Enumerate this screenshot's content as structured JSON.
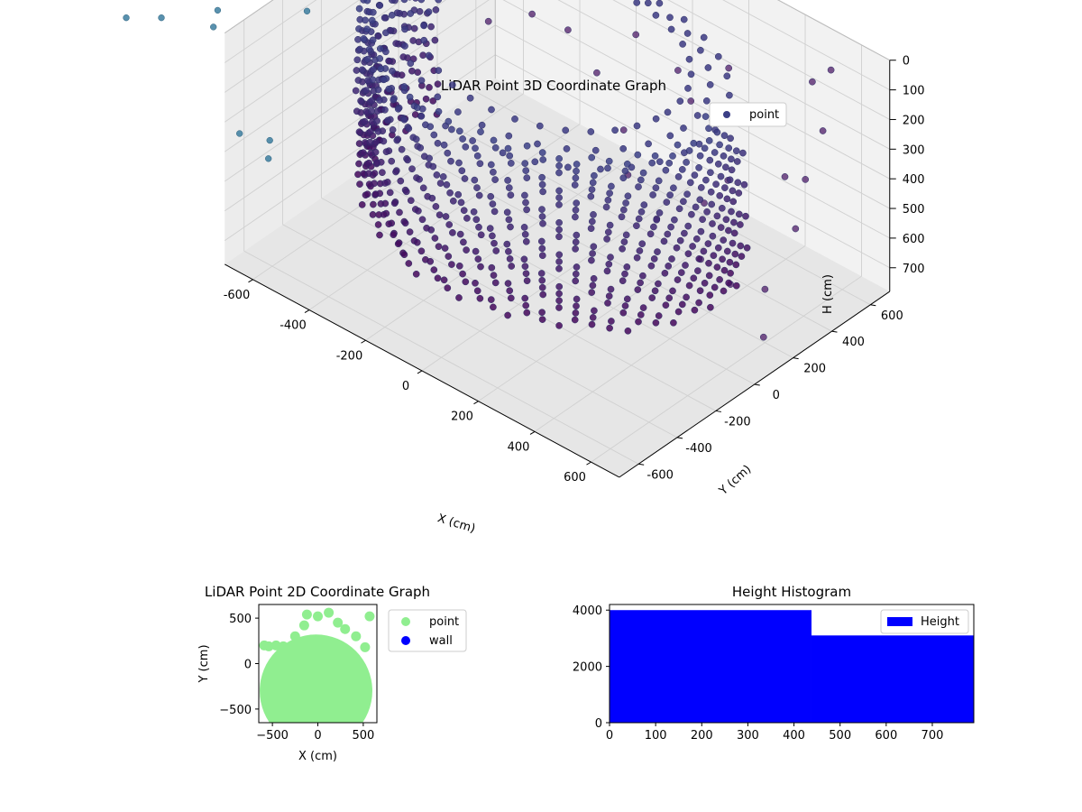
{
  "chart_data": [
    {
      "type": "scatter",
      "projection": "3d",
      "title": "LiDAR Point 3D Coordinate Graph",
      "xlabel": "X (cm)",
      "ylabel": "Y (cm)",
      "zlabel": "H (cm)",
      "xlim": [
        -700,
        700
      ],
      "ylim": [
        -700,
        700
      ],
      "zlim": [
        0,
        780
      ],
      "xticks": [
        "-600",
        "-400",
        "-200",
        "0",
        "200",
        "400",
        "600"
      ],
      "yticks": [
        "-600",
        "-400",
        "-200",
        "0",
        "200",
        "400",
        "600"
      ],
      "zticks": [
        "0",
        "100",
        "200",
        "300",
        "400",
        "500",
        "600",
        "700"
      ],
      "z_inverted": true,
      "legend": {
        "entries": [
          "point"
        ],
        "placement": "top-right"
      },
      "colormap": "viridis",
      "colors": {
        "deep": "#44075a",
        "mid": "#3b3f86",
        "teal": "#3c7ea0"
      },
      "grid": true,
      "series": [
        {
          "name": "point",
          "shape": "partial cylinder (arc of vertical point columns)",
          "radius": 560,
          "arc_deg": [
            -15,
            195
          ],
          "h_range": [
            0,
            560
          ],
          "outliers": [
            {
              "x": 300,
              "y": 450,
              "h": 120
            },
            {
              "x": 560,
              "y": 600,
              "h": 60
            },
            {
              "x": 600,
              "y": 500,
              "h": 200
            },
            {
              "x": 480,
              "y": 620,
              "h": 150
            },
            {
              "x": 620,
              "y": 380,
              "h": 300
            },
            {
              "x": 640,
              "y": 300,
              "h": 420
            },
            {
              "x": 600,
              "y": 200,
              "h": 600
            },
            {
              "x": 650,
              "y": 120,
              "h": 700
            },
            {
              "x": 560,
              "y": 80,
              "h": 550
            },
            {
              "x": 400,
              "y": 300,
              "h": 380
            },
            {
              "x": 350,
              "y": 250,
              "h": 460
            },
            {
              "x": 200,
              "y": 400,
              "h": 260
            },
            {
              "x": 120,
              "y": 450,
              "h": 220
            },
            {
              "x": -50,
              "y": 480,
              "h": 200
            },
            {
              "x": -250,
              "y": 420,
              "h": 260
            },
            {
              "x": -350,
              "y": 380,
              "h": 240
            },
            {
              "x": -450,
              "y": 300,
              "h": 280
            },
            {
              "x": 420,
              "y": 130,
              "h": 560
            },
            {
              "x": 250,
              "y": 150,
              "h": 520
            },
            {
              "x": 100,
              "y": 220,
              "h": 480
            },
            {
              "x": 30,
              "y": 300,
              "h": 400
            },
            {
              "x": -120,
              "y": 380,
              "h": 320
            },
            {
              "x": 450,
              "y": 500,
              "h": 240
            },
            {
              "x": 520,
              "y": 420,
              "h": 360
            }
          ],
          "floor_outliers": [
            {
              "x": -900,
              "y": -350,
              "h": 0
            },
            {
              "x": -860,
              "y": -470,
              "h": 0
            },
            {
              "x": -780,
              "y": -620,
              "h": 0
            },
            {
              "x": -740,
              "y": -700,
              "h": 0
            },
            {
              "x": -870,
              "y": -780,
              "h": 0
            },
            {
              "x": -940,
              "y": -860,
              "h": 0
            },
            {
              "x": -600,
              "y": -420,
              "h": 0
            },
            {
              "x": -1000,
              "y": -760,
              "h": 0
            },
            {
              "x": -300,
              "y": -1050,
              "h": 0
            },
            {
              "x": -250,
              "y": -1130,
              "h": 0
            },
            {
              "x": -380,
              "y": -1090,
              "h": 0
            }
          ]
        }
      ]
    },
    {
      "type": "scatter",
      "title": "LiDAR Point 2D Coordinate Graph",
      "xlabel": "X (cm)",
      "ylabel": "Y (cm)",
      "xlim": [
        -650,
        650
      ],
      "ylim": [
        -650,
        650
      ],
      "xticks": [
        -500,
        0,
        500
      ],
      "yticks": [
        -500,
        0,
        500
      ],
      "legend": {
        "entries": [
          "point",
          "wall"
        ],
        "placement": "outside right"
      },
      "series": [
        {
          "name": "point",
          "color": "#90ee90",
          "shape": "filled disc, radius ~600, dense",
          "extent_top": 550
        },
        {
          "name": "wall",
          "color": "#0000ff",
          "points": []
        }
      ]
    },
    {
      "type": "bar",
      "title": "Height Histogram",
      "legend": {
        "entries": [
          "Height"
        ],
        "placement": "top-right"
      },
      "color": "#0000ff",
      "xlim": [
        0,
        790
      ],
      "ylim": [
        0,
        4200
      ],
      "xticks": [
        0,
        100,
        200,
        300,
        400,
        500,
        600,
        700
      ],
      "yticks": [
        0,
        2000,
        4000
      ],
      "bins": [
        {
          "from": 0,
          "to": 438,
          "count": 4000
        },
        {
          "from": 438,
          "to": 790,
          "count": 3100
        }
      ]
    }
  ]
}
